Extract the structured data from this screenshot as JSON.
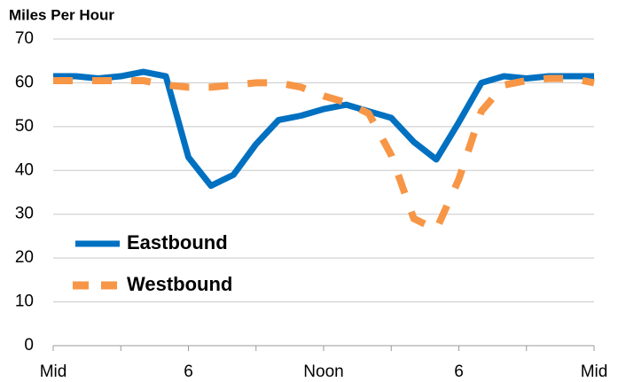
{
  "chart_data": {
    "type": "line",
    "y_label": "Miles Per Hour",
    "categories": [
      "Mid",
      null,
      null,
      null,
      null,
      null,
      "6",
      null,
      null,
      null,
      null,
      null,
      "Noon",
      null,
      null,
      null,
      null,
      null,
      "6",
      null,
      null,
      null,
      null,
      null,
      "Mid"
    ],
    "series": [
      {
        "name": "Eastbound",
        "color": "#0070c0",
        "dashed": false,
        "values": [
          61.5,
          61.5,
          61,
          61.5,
          62.5,
          61.5,
          43,
          36.5,
          39,
          46,
          51.5,
          52.5,
          54,
          55,
          53.5,
          52,
          46.5,
          42.5,
          51,
          60,
          61.5,
          61,
          61.5,
          61.5,
          61.5
        ]
      },
      {
        "name": "Westbound",
        "color": "#f79646",
        "dashed": true,
        "values": [
          60.5,
          60.5,
          60.5,
          60.5,
          60.5,
          59.5,
          59,
          59,
          59.5,
          60,
          60,
          59,
          57,
          55.5,
          53,
          43.5,
          29,
          26.5,
          38,
          53.5,
          59.5,
          60.5,
          61,
          61,
          60
        ]
      }
    ],
    "ylim": [
      0,
      70
    ],
    "yticks": [
      0,
      10,
      20,
      30,
      40,
      50,
      60,
      70
    ],
    "grid": true,
    "legend": "lower left"
  }
}
